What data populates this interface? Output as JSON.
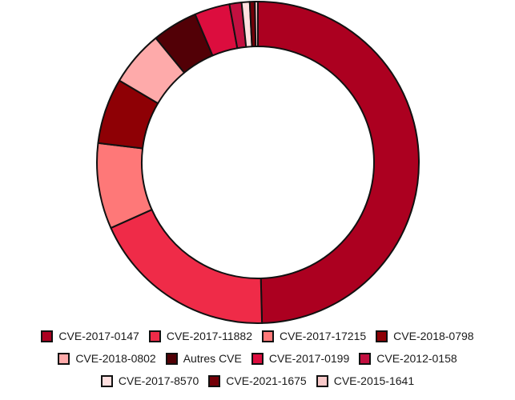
{
  "chart_data": {
    "type": "pie",
    "variant": "donut",
    "title": "",
    "series": [
      {
        "name": "",
        "slices": [
          {
            "label": "CVE-2017-0147",
            "value": 49.0,
            "color": "#ac0020"
          },
          {
            "label": "CVE-2017-11882",
            "value": 18.5,
            "color": "#ef2b48"
          },
          {
            "label": "CVE-2017-17215",
            "value": 8.5,
            "color": "#fe7878"
          },
          {
            "label": "CVE-2018-0798",
            "value": 6.5,
            "color": "#8e0005"
          },
          {
            "label": "CVE-2018-0802",
            "value": 5.5,
            "color": "#feaaaa"
          },
          {
            "label": "Autres CVE",
            "value": 4.5,
            "color": "#520006"
          },
          {
            "label": "CVE-2017-0199",
            "value": 3.5,
            "color": "#dc0d3e"
          },
          {
            "label": "CVE-2012-0158",
            "value": 1.2,
            "color": "#c21040"
          },
          {
            "label": "CVE-2017-8570",
            "value": 0.8,
            "color": "#ffe0e0"
          },
          {
            "label": "CVE-2021-1675",
            "value": 0.5,
            "color": "#740008"
          },
          {
            "label": "CVE-2015-1641",
            "value": 0.3,
            "color": "#f8c9c9"
          }
        ]
      }
    ],
    "legend": {
      "position": "bottom",
      "rows": [
        [
          "CVE-2017-0147",
          "CVE-2017-11882",
          "CVE-2017-17215",
          "CVE-2018-0798"
        ],
        [
          "CVE-2018-0802",
          "Autres CVE",
          "CVE-2017-0199",
          "CVE-2012-0158"
        ],
        [
          "CVE-2017-8570",
          "CVE-2021-1675",
          "CVE-2015-1641"
        ]
      ]
    },
    "slice_border_color": "#111111"
  }
}
